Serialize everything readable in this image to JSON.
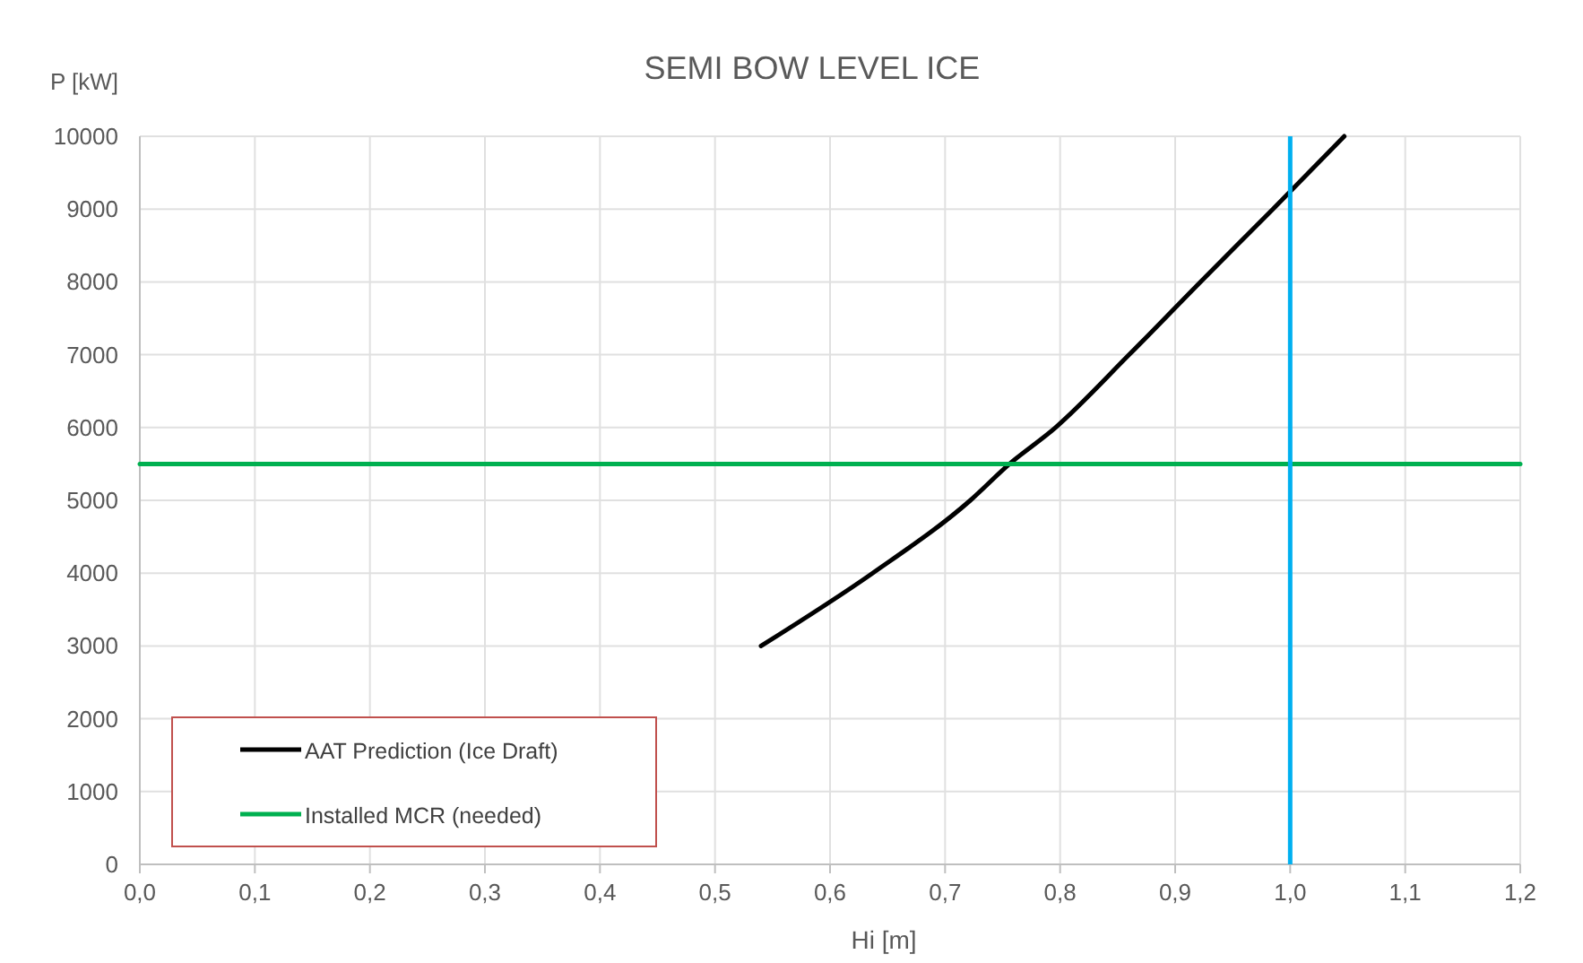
{
  "chart_data": {
    "type": "line",
    "title": "SEMI BOW LEVEL ICE",
    "xlabel": "Hi [m]",
    "ylabel": "P [kW]",
    "series": [
      {
        "name": "AAT Prediction (Ice Draft)",
        "color": "#000000",
        "x": [
          0.54,
          0.637,
          0.722,
          0.756,
          0.796,
          0.86,
          0.922,
          0.985,
          1.047
        ],
        "values": [
          3000,
          4000,
          5000,
          5500,
          6000,
          7000,
          8000,
          9000,
          10000
        ]
      },
      {
        "name": "Installed MCR (needed)",
        "color": "#00b050",
        "x": [
          0,
          1.2
        ],
        "values": [
          5500,
          5500
        ]
      }
    ],
    "ref_lines": [
      {
        "axis": "x",
        "value": 1.0,
        "label": null,
        "color": "#00b0f0"
      }
    ],
    "xlim": [
      0,
      1.2
    ],
    "ylim": [
      0,
      10000
    ],
    "xticks": [
      {
        "value": 0,
        "label": "0,0"
      },
      {
        "value": 0.1,
        "label": "0,1"
      },
      {
        "value": 0.2,
        "label": "0,2"
      },
      {
        "value": 0.3,
        "label": "0,3"
      },
      {
        "value": 0.4,
        "label": "0,4"
      },
      {
        "value": 0.5,
        "label": "0,5"
      },
      {
        "value": 0.6,
        "label": "0,6"
      },
      {
        "value": 0.7,
        "label": "0,7"
      },
      {
        "value": 0.8,
        "label": "0,8"
      },
      {
        "value": 0.9,
        "label": "0,9"
      },
      {
        "value": 1.0,
        "label": "1,0"
      },
      {
        "value": 1.1,
        "label": "1,1"
      },
      {
        "value": 1.2,
        "label": "1,2"
      }
    ],
    "yticks": [
      0,
      1000,
      2000,
      3000,
      4000,
      5000,
      6000,
      7000,
      8000,
      9000,
      10000
    ],
    "grid": true,
    "legend": "bottom left",
    "marker": "none",
    "line_style": "solid"
  }
}
